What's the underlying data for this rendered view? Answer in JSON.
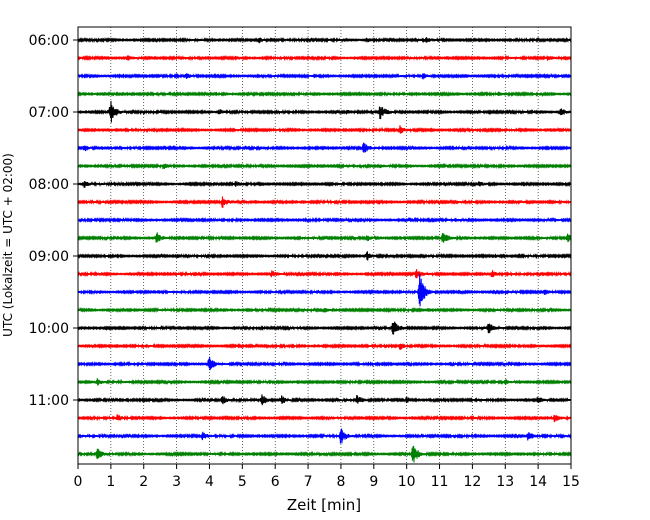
{
  "chart_data": {
    "type": "line",
    "subtype": "seismogram-helicorder",
    "xlabel": "Zeit  [min]",
    "ylabel": "UTC (Lokalzeit = UTC + 02:00)",
    "xlim": [
      0,
      15
    ],
    "x_ticks": [
      0,
      1,
      2,
      3,
      4,
      5,
      6,
      7,
      8,
      9,
      10,
      11,
      12,
      13,
      14,
      15
    ],
    "y_tick_labels": [
      "06:00",
      "07:00",
      "08:00",
      "09:00",
      "10:00",
      "11:00"
    ],
    "rows_per_hour": 4,
    "minutes_per_row": 15,
    "grid": "vertical dotted",
    "colors": [
      "#000000",
      "#ff0000",
      "#0000ff",
      "#008000"
    ],
    "traces": [
      {
        "start": "06:00",
        "events": [
          {
            "t": 5.5,
            "a": 0.8
          },
          {
            "t": 8.8,
            "a": 0.6
          },
          {
            "t": 10.6,
            "a": 0.5
          }
        ]
      },
      {
        "start": "06:15",
        "events": [
          {
            "t": 1.5,
            "a": 0.7
          },
          {
            "t": 4.8,
            "a": 0.5
          },
          {
            "t": 14.3,
            "a": 0.6
          }
        ]
      },
      {
        "start": "06:30",
        "events": [
          {
            "t": 3.3,
            "a": 0.6
          },
          {
            "t": 10.5,
            "a": 0.7
          },
          {
            "t": 14.6,
            "a": 0.4
          }
        ]
      },
      {
        "start": "06:45",
        "events": [
          {
            "t": 4.2,
            "a": 0.4
          },
          {
            "t": 12.8,
            "a": 0.4
          }
        ]
      },
      {
        "start": "07:00",
        "events": [
          {
            "t": 1.0,
            "a": 3.4
          },
          {
            "t": 4.3,
            "a": 0.8
          },
          {
            "t": 8.2,
            "a": 0.7
          },
          {
            "t": 9.2,
            "a": 1.9
          },
          {
            "t": 14.7,
            "a": 1.0
          }
        ]
      },
      {
        "start": "07:15",
        "events": [
          {
            "t": 9.8,
            "a": 1.1
          }
        ]
      },
      {
        "start": "07:30",
        "events": [
          {
            "t": 0.2,
            "a": 0.8
          },
          {
            "t": 8.7,
            "a": 1.3
          },
          {
            "t": 11.9,
            "a": 0.4
          }
        ]
      },
      {
        "start": "07:45",
        "events": [
          {
            "t": 2.6,
            "a": 0.7
          },
          {
            "t": 9.2,
            "a": 0.5
          }
        ]
      },
      {
        "start": "08:00",
        "events": [
          {
            "t": 0.2,
            "a": 0.9
          },
          {
            "t": 4.8,
            "a": 0.6
          },
          {
            "t": 12.2,
            "a": 0.5
          }
        ]
      },
      {
        "start": "08:15",
        "events": [
          {
            "t": 4.4,
            "a": 1.4
          },
          {
            "t": 13.4,
            "a": 0.4
          }
        ]
      },
      {
        "start": "08:30",
        "events": [
          {
            "t": 8.0,
            "a": 0.4
          }
        ]
      },
      {
        "start": "08:45",
        "events": [
          {
            "t": 2.4,
            "a": 1.5
          },
          {
            "t": 8.8,
            "a": 0.8
          },
          {
            "t": 11.1,
            "a": 1.5
          },
          {
            "t": 14.9,
            "a": 1.0
          }
        ]
      },
      {
        "start": "09:00",
        "events": [
          {
            "t": 3.0,
            "a": 0.5
          },
          {
            "t": 8.8,
            "a": 1.2
          },
          {
            "t": 12.7,
            "a": 0.4
          }
        ]
      },
      {
        "start": "09:15",
        "events": [
          {
            "t": 5.9,
            "a": 0.8
          },
          {
            "t": 10.3,
            "a": 1.1
          },
          {
            "t": 12.6,
            "a": 1.0
          }
        ]
      },
      {
        "start": "09:30",
        "events": [
          {
            "t": 10.4,
            "a": 5.0
          },
          {
            "t": 14.2,
            "a": 0.6
          }
        ]
      },
      {
        "start": "09:45",
        "events": [
          {
            "t": 7.5,
            "a": 0.7
          }
        ]
      },
      {
        "start": "10:00",
        "events": [
          {
            "t": 9.6,
            "a": 2.4
          },
          {
            "t": 12.5,
            "a": 1.4
          }
        ]
      },
      {
        "start": "10:15",
        "events": [
          {
            "t": 9.8,
            "a": 0.9
          }
        ]
      },
      {
        "start": "10:30",
        "events": [
          {
            "t": 4.0,
            "a": 2.1
          }
        ]
      },
      {
        "start": "10:45",
        "events": [
          {
            "t": 0.6,
            "a": 1.0
          },
          {
            "t": 13.0,
            "a": 0.7
          }
        ]
      },
      {
        "start": "11:00",
        "events": [
          {
            "t": 4.4,
            "a": 1.1
          },
          {
            "t": 5.6,
            "a": 1.4
          },
          {
            "t": 6.2,
            "a": 1.2
          },
          {
            "t": 8.5,
            "a": 1.3
          },
          {
            "t": 10.0,
            "a": 0.8
          },
          {
            "t": 14.0,
            "a": 0.9
          }
        ]
      },
      {
        "start": "11:15",
        "events": [
          {
            "t": 1.2,
            "a": 0.9
          },
          {
            "t": 14.5,
            "a": 0.9
          }
        ]
      },
      {
        "start": "11:30",
        "events": [
          {
            "t": 3.8,
            "a": 1.0
          },
          {
            "t": 8.0,
            "a": 2.3
          },
          {
            "t": 13.7,
            "a": 1.3
          }
        ]
      },
      {
        "start": "11:45",
        "events": [
          {
            "t": 0.6,
            "a": 1.5
          },
          {
            "t": 10.2,
            "a": 2.8
          }
        ]
      }
    ]
  }
}
